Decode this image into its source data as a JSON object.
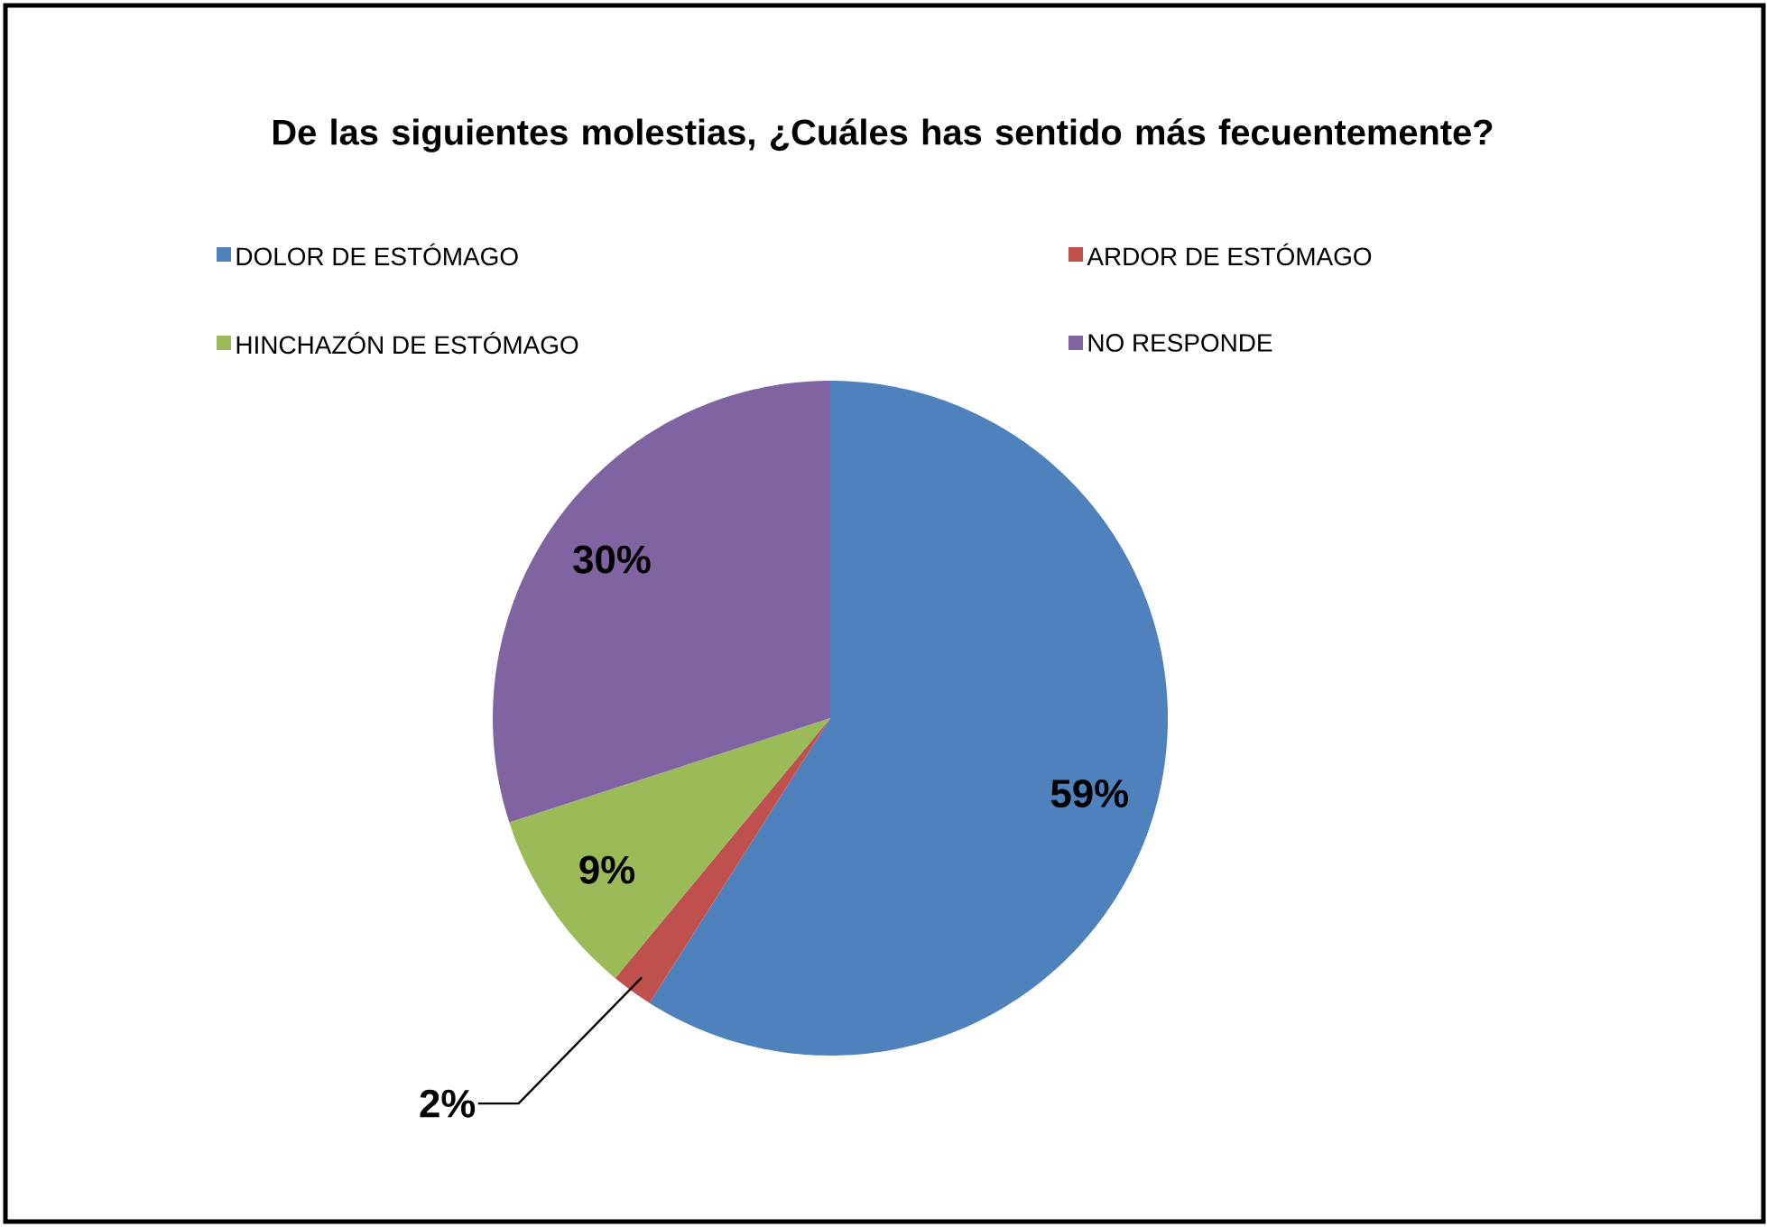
{
  "chart_data": {
    "type": "pie",
    "title": "De las siguientes molestias, ¿Cuáles has sentido más fecuentemente?",
    "categories": [
      "DOLOR DE ESTÓMAGO",
      "ARDOR DE ESTÓMAGO",
      "HINCHAZÓN DE ESTÓMAGO",
      "NO RESPONDE"
    ],
    "values": [
      59,
      2,
      9,
      30
    ],
    "value_labels": [
      "59%",
      "2%",
      "9%",
      "30%"
    ],
    "colors": [
      "#4f81bd",
      "#c0504d",
      "#9bbb59",
      "#8064a2"
    ],
    "legend": "top"
  }
}
